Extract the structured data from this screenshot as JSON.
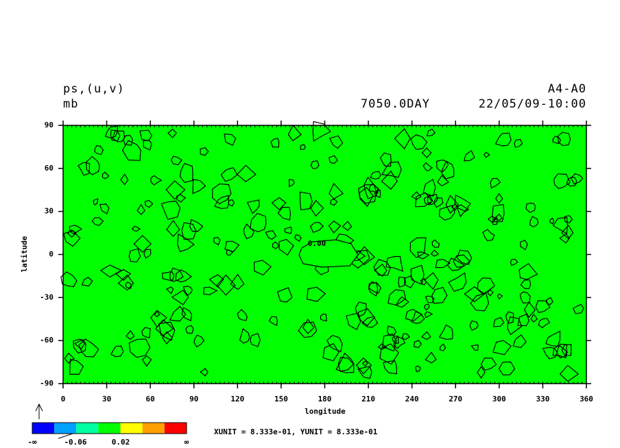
{
  "chart_data": {
    "type": "contour",
    "title": "ps,(u,v)",
    "subtitle": "mb",
    "experiment": "A4-A0",
    "time": "7050.0DAY",
    "date": "22/05/09-10:00",
    "xlabel": "longitude",
    "ylabel": "latitude",
    "xlim": [
      0,
      360
    ],
    "xticks": [
      0,
      30,
      60,
      90,
      120,
      150,
      180,
      210,
      240,
      270,
      300,
      330,
      360
    ],
    "ylim": [
      -90,
      90
    ],
    "yticks": [
      -90,
      -60,
      -30,
      0,
      30,
      60,
      90
    ],
    "fill_color": "#00ff00",
    "contour_label": "0.00",
    "colorbar": {
      "colors": [
        "#0000ff",
        "#00a0ff",
        "#00ffa0",
        "#00ff00",
        "#ffff00",
        "#ffa000",
        "#ff0000"
      ],
      "tick_labels": [
        "-∞",
        "-0.06",
        "0.02",
        "∞"
      ]
    },
    "footer": "XUNIT = 8.333e-01, YUNIT = 8.333e-01"
  }
}
